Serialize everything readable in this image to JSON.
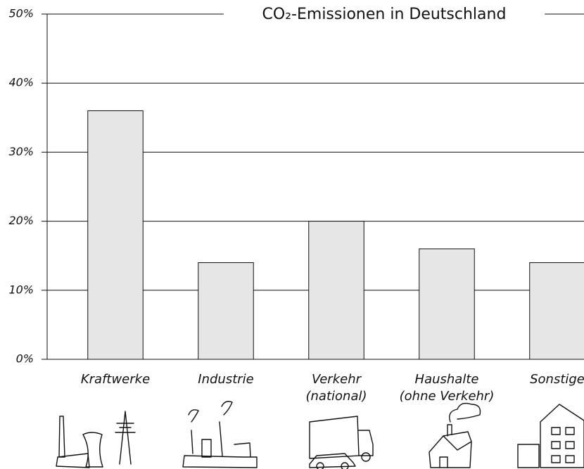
{
  "chart_data": {
    "type": "bar",
    "title": "CO₂-Emissionen in Deutschland",
    "categories": [
      [
        "Kraftwerke"
      ],
      [
        "Industrie"
      ],
      [
        "Verkehr",
        "(national)"
      ],
      [
        "Haushalte",
        "(ohne Verkehr)"
      ],
      [
        "Sonstige"
      ]
    ],
    "values": [
      36,
      14,
      20,
      16,
      14
    ],
    "color": "#e6e6e6",
    "ylim": [
      0,
      50
    ],
    "yticks": [
      {
        "value": 0,
        "label": "0%"
      },
      {
        "value": 10,
        "label": "10%"
      },
      {
        "value": 20,
        "label": "20%"
      },
      {
        "value": 30,
        "label": "30%"
      },
      {
        "value": 40,
        "label": "40%"
      },
      {
        "value": 50,
        "label": "50%"
      }
    ],
    "grid": true
  }
}
